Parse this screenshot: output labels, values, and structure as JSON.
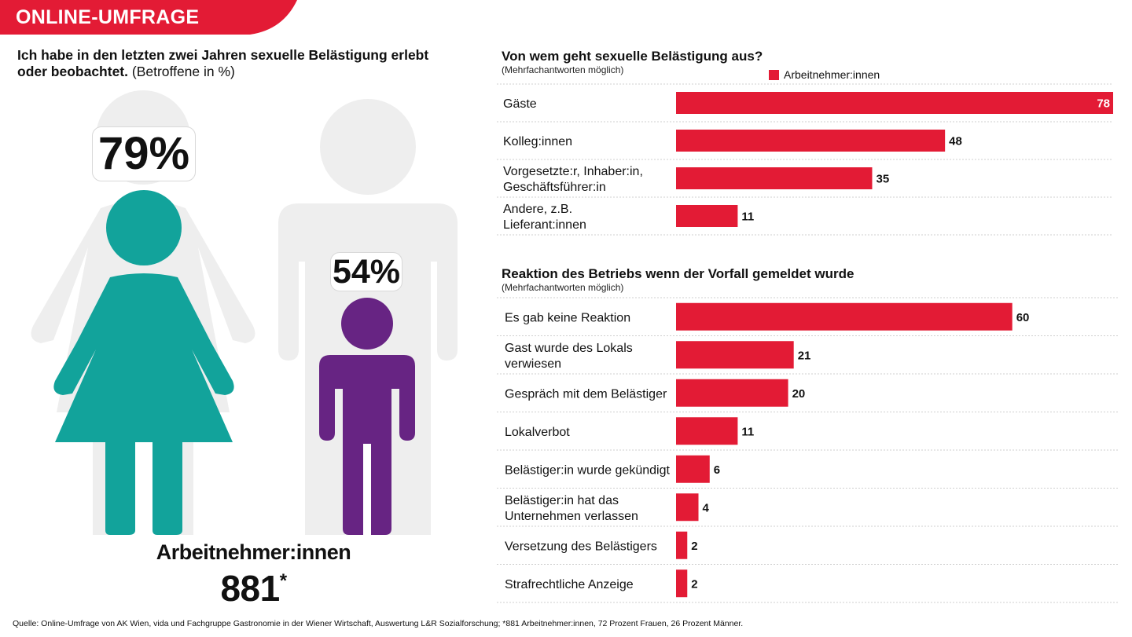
{
  "header": {
    "label": "ONLINE-UMFRAGE"
  },
  "colors": {
    "accent_red": "#e31b35",
    "women_teal": "#12a39b",
    "men_purple": "#672483",
    "silhouette_grey": "#eeeeee"
  },
  "left_panel": {
    "title_bold": "Ich habe in den letzten zwei Jahren sexuelle Belästigung erlebt oder beobachtet.",
    "title_normal": "(Betroffene in %)",
    "women_pct": "79%",
    "men_pct": "54%",
    "women_share": 0.79,
    "men_share": 0.54,
    "sample_label": "Arbeitnehmer:innen",
    "sample_n": "881",
    "sample_mark": "*"
  },
  "source": "Quelle: Online-Umfrage von AK Wien, vida und Fachgruppe Gastronomie in der Wiener Wirtschaft, Auswertung L&R Sozialforschung; *881 Arbeitnehmer:innen, 72 Prozent Frauen, 26 Prozent Männer.",
  "chart_data": [
    {
      "type": "bar",
      "orientation": "horizontal",
      "title": "Von wem geht sexuelle Belästigung aus?",
      "subtitle": "(Mehrfachantworten möglich)",
      "legend": [
        "Arbeitnehmer:innen"
      ],
      "categories": [
        [
          "Gäste"
        ],
        [
          "Kolleg:innen"
        ],
        [
          "Vorgesetzte:r, Inhaber:in,",
          "Geschäftsführer:in"
        ],
        [
          "Andere, z.B.",
          "Lieferant:innen"
        ]
      ],
      "series": [
        {
          "name": "Arbeitnehmer:innen",
          "values": [
            78,
            48,
            35,
            11
          ]
        }
      ],
      "xlim": [
        0,
        78
      ]
    },
    {
      "type": "bar",
      "orientation": "horizontal",
      "title": "Reaktion des Betriebs wenn der Vorfall gemeldet wurde",
      "subtitle": "(Mehrfachantworten möglich)",
      "categories": [
        [
          "Es gab keine Reaktion"
        ],
        [
          "Gast wurde des Lokals",
          "verwiesen"
        ],
        [
          "Gespräch mit dem Belästiger"
        ],
        [
          "Lokalverbot"
        ],
        [
          "Belästiger:in wurde gekündigt"
        ],
        [
          "Belästiger:in hat das",
          "Unternehmen verlassen"
        ],
        [
          "Versetzung des Belästigers"
        ],
        [
          "Strafrechtliche Anzeige"
        ]
      ],
      "series": [
        {
          "values": [
            60,
            21,
            20,
            11,
            6,
            4,
            2,
            2
          ]
        }
      ],
      "xlim": [
        0,
        78
      ]
    }
  ]
}
